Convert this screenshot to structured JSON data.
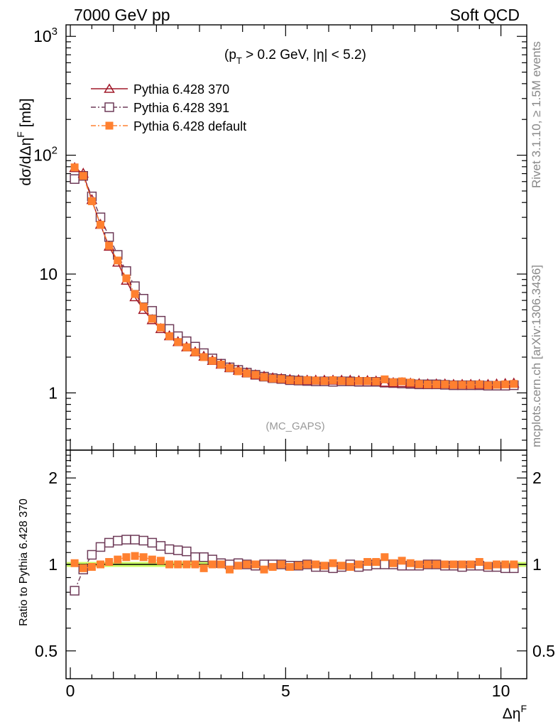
{
  "header": {
    "energy": "7000 GeV pp",
    "process": "Soft QCD"
  },
  "annotations": {
    "cuts_pre": "(p",
    "cuts_sub": "T",
    "cuts_post": " > 0.2 GeV, |η| < 5.2)",
    "analysis": "(MC_GAPS)"
  },
  "side_labels": {
    "rivet": "Rivet 3.1.10, ≥ 1.5M events",
    "mcplots": "mcplots.cern.ch [arXiv:1306.3436]"
  },
  "axes": {
    "ylabel_main": "dσ/dΔη",
    "ylabel_main_sup": "F",
    "ylabel_main_unit": " [mb]",
    "ylabel_ratio": "Ratio to Pythia 6.428 370",
    "xlabel": "Δη",
    "xlabel_sup": "F"
  },
  "ticks": {
    "main_y": [
      {
        "value": 1,
        "label": "1"
      },
      {
        "value": 10,
        "label": "10"
      },
      {
        "value": 100,
        "label": "10",
        "sup": "2"
      },
      {
        "value": 1000,
        "label": "10",
        "sup": "3"
      }
    ],
    "ratio_y": [
      {
        "value": 0.5,
        "label": "0.5"
      },
      {
        "value": 1,
        "label": "1"
      },
      {
        "value": 2,
        "label": "2"
      }
    ],
    "x": [
      {
        "value": 0,
        "label": "0"
      },
      {
        "value": 5,
        "label": "5"
      },
      {
        "value": 10,
        "label": "10"
      }
    ]
  },
  "colors": {
    "series_370": "#a01828",
    "series_391": "#6e3b58",
    "series_default": "#ff8030",
    "band": "#ccff66",
    "refline": "#22aa22"
  },
  "chart_data": {
    "type": "scatter",
    "title": "",
    "xlim": [
      -0.1,
      10.6
    ],
    "main": {
      "yscale": "log",
      "ylim": [
        0.33,
        1250
      ],
      "x": [
        0.1,
        0.3,
        0.5,
        0.7,
        0.9,
        1.1,
        1.3,
        1.5,
        1.7,
        1.9,
        2.1,
        2.3,
        2.5,
        2.7,
        2.9,
        3.1,
        3.3,
        3.5,
        3.7,
        3.9,
        4.1,
        4.3,
        4.5,
        4.7,
        4.9,
        5.1,
        5.3,
        5.5,
        5.7,
        5.9,
        6.1,
        6.3,
        6.5,
        6.7,
        6.9,
        7.1,
        7.3,
        7.5,
        7.7,
        7.9,
        8.1,
        8.3,
        8.5,
        8.7,
        8.9,
        9.1,
        9.3,
        9.5,
        9.7,
        9.9,
        10.1,
        10.3
      ],
      "series": [
        {
          "name": "Pythia 6.428 370",
          "marker": "triangle-open",
          "values": [
            78,
            70,
            42,
            26,
            17,
            12.5,
            8.8,
            6.4,
            5.0,
            4.1,
            3.45,
            3.0,
            2.68,
            2.42,
            2.2,
            2.02,
            1.86,
            1.73,
            1.62,
            1.54,
            1.47,
            1.41,
            1.37,
            1.33,
            1.31,
            1.29,
            1.28,
            1.27,
            1.27,
            1.27,
            1.27,
            1.27,
            1.27,
            1.26,
            1.26,
            1.25,
            1.22,
            1.21,
            1.21,
            1.2,
            1.19,
            1.18,
            1.18,
            1.18,
            1.17,
            1.17,
            1.17,
            1.17,
            1.17,
            1.18,
            1.19,
            1.2
          ]
        },
        {
          "name": "Pythia 6.428 391",
          "marker": "square-open",
          "values": [
            63,
            67,
            45,
            30,
            20.5,
            14.5,
            10.6,
            7.9,
            6.2,
            4.9,
            4.05,
            3.45,
            3.0,
            2.72,
            2.45,
            2.16,
            1.95,
            1.76,
            1.64,
            1.56,
            1.48,
            1.42,
            1.37,
            1.33,
            1.31,
            1.28,
            1.27,
            1.26,
            1.25,
            1.25,
            1.24,
            1.25,
            1.25,
            1.24,
            1.24,
            1.24,
            1.22,
            1.21,
            1.2,
            1.19,
            1.18,
            1.18,
            1.18,
            1.17,
            1.16,
            1.16,
            1.16,
            1.16,
            1.15,
            1.15,
            1.15,
            1.16
          ]
        },
        {
          "name": "Pythia 6.428 default",
          "marker": "square-filled",
          "values": [
            79,
            67,
            41,
            26,
            17.3,
            13,
            9.2,
            6.8,
            5.3,
            4.2,
            3.55,
            3.0,
            2.68,
            2.42,
            2.2,
            2.0,
            1.86,
            1.73,
            1.62,
            1.52,
            1.46,
            1.42,
            1.36,
            1.32,
            1.31,
            1.28,
            1.27,
            1.28,
            1.27,
            1.26,
            1.28,
            1.26,
            1.25,
            1.26,
            1.26,
            1.25,
            1.3,
            1.23,
            1.25,
            1.22,
            1.19,
            1.18,
            1.18,
            1.18,
            1.17,
            1.17,
            1.17,
            1.18,
            1.16,
            1.17,
            1.18,
            1.19
          ]
        }
      ]
    },
    "ratio": {
      "yscale": "log",
      "ylim": [
        0.4,
        2.5
      ],
      "band": [
        0.98,
        1.02
      ],
      "series": [
        {
          "name": "Pythia 6.428 391",
          "marker": "square-open",
          "values": [
            0.81,
            0.96,
            1.08,
            1.15,
            1.19,
            1.21,
            1.22,
            1.22,
            1.21,
            1.19,
            1.16,
            1.13,
            1.12,
            1.11,
            1.06,
            1.06,
            1.04,
            1.01,
            1.0,
            1.01,
            1.0,
            0.99,
            1.0,
            1.0,
            1.0,
            0.99,
            0.99,
            1.0,
            0.98,
            0.98,
            0.97,
            0.98,
            1.0,
            0.98,
            0.99,
            1.0,
            1.0,
            1.0,
            0.99,
            0.99,
            0.99,
            1.0,
            1.0,
            0.99,
            0.99,
            0.98,
            0.99,
            0.99,
            0.98,
            0.98,
            0.97,
            0.97
          ]
        },
        {
          "name": "Pythia 6.428 default",
          "marker": "square-filled",
          "values": [
            1.01,
            0.97,
            0.98,
            1.0,
            1.02,
            1.04,
            1.06,
            1.07,
            1.06,
            1.04,
            1.03,
            1.0,
            1.0,
            1.0,
            1.0,
            0.97,
            1.0,
            1.0,
            0.96,
            0.99,
            1.0,
            1.0,
            0.96,
            0.98,
            1.0,
            0.98,
            0.99,
            1.0,
            1.0,
            0.99,
            1.01,
            0.99,
            0.98,
            1.0,
            1.02,
            1.02,
            1.06,
            1.01,
            1.03,
            1.01,
            1.0,
            1.0,
            1.0,
            1.0,
            1.0,
            1.0,
            1.0,
            1.02,
            0.99,
            1.0,
            1.0,
            1.0
          ]
        }
      ]
    }
  }
}
